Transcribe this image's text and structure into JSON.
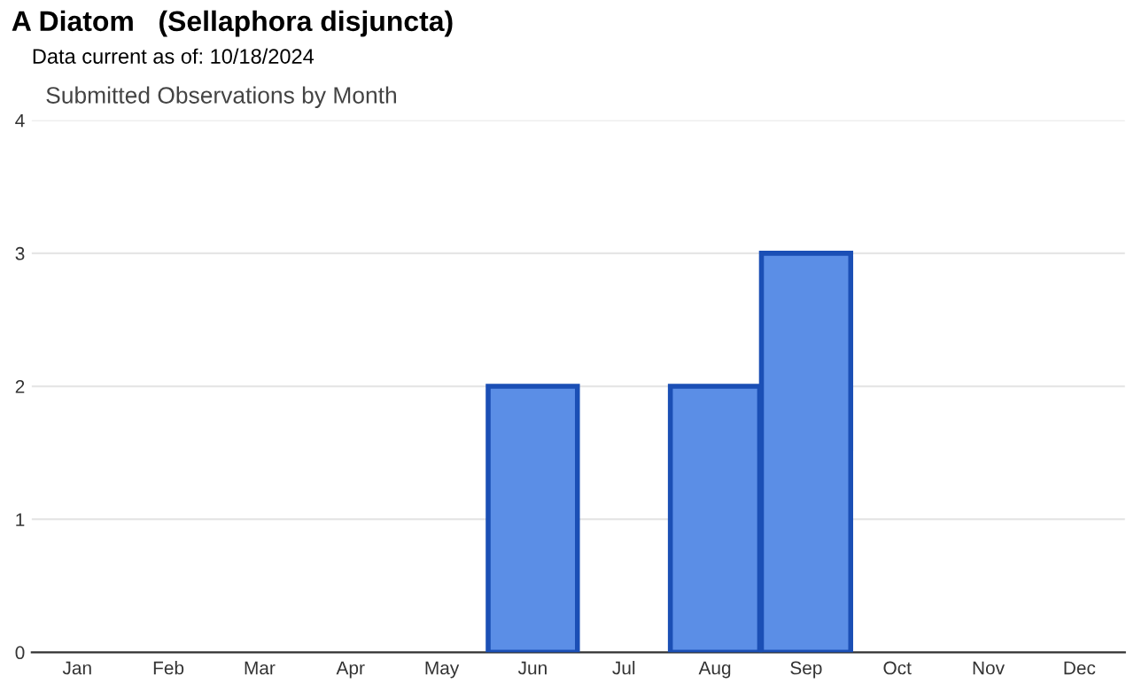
{
  "chart_data": {
    "type": "bar",
    "title": "A Diatom   (Sellaphora disjuncta)",
    "subtitle": "Data current as of: 10/18/2024",
    "annotations": [
      "Submitted Observations by Month"
    ],
    "categories": [
      "Jan",
      "Feb",
      "Mar",
      "Apr",
      "May",
      "Jun",
      "Jul",
      "Aug",
      "Sep",
      "Oct",
      "Nov",
      "Dec"
    ],
    "values": [
      0,
      0,
      0,
      0,
      0,
      2,
      0,
      2,
      3,
      0,
      0,
      0
    ],
    "color": "#5b8ee6",
    "ylim": [
      0,
      4
    ],
    "yticks": [
      0,
      1,
      2,
      3,
      4
    ],
    "grid": "y"
  }
}
